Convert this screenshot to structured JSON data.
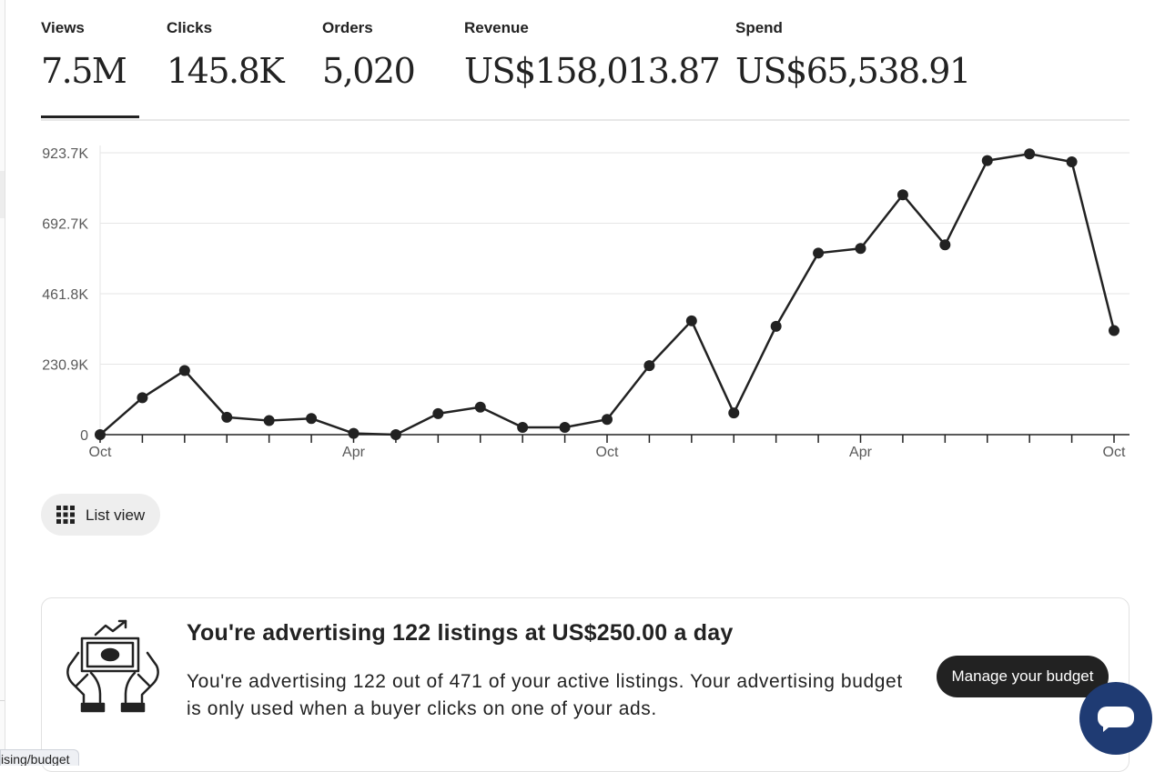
{
  "stats": [
    {
      "label": "Views",
      "value": "7.5M"
    },
    {
      "label": "Clicks",
      "value": "145.8K"
    },
    {
      "label": "Orders",
      "value": "5,020"
    },
    {
      "label": "Revenue",
      "value": "US$158,013.87"
    },
    {
      "label": "Spend",
      "value": "US$65,538.91"
    }
  ],
  "active_stat": "Views",
  "chart_data": {
    "type": "line",
    "title": "",
    "xlabel": "",
    "ylabel": "",
    "ylim": [
      0,
      923.7
    ],
    "y_unit": "K",
    "y_ticks": [
      "0",
      "230.9K",
      "461.8K",
      "692.7K",
      "923.7K"
    ],
    "x_tick_labels": [
      {
        "index": 0,
        "label": "Oct"
      },
      {
        "index": 6,
        "label": "Apr"
      },
      {
        "index": 12,
        "label": "Oct"
      },
      {
        "index": 18,
        "label": "Apr"
      },
      {
        "index": 24,
        "label": "Oct"
      }
    ],
    "grid": true,
    "series": [
      {
        "values": [
          0,
          121,
          210,
          57,
          46,
          53,
          4,
          0,
          69,
          90,
          24,
          24,
          50,
          226,
          373,
          71,
          355,
          595,
          610,
          786,
          622,
          898,
          920,
          894,
          341
        ]
      }
    ],
    "line_color": "#222222"
  },
  "list_view": {
    "label": "List view"
  },
  "promo": {
    "title": "You're advertising 122 listings at US$250.00 a day",
    "body": "You're advertising 122 out of 471 of your active listings. Your advertising budget is only used when a buyer clicks on one of your ads."
  },
  "tooltip": {
    "label": "Manage your budget"
  },
  "status_url": "ising/budget"
}
